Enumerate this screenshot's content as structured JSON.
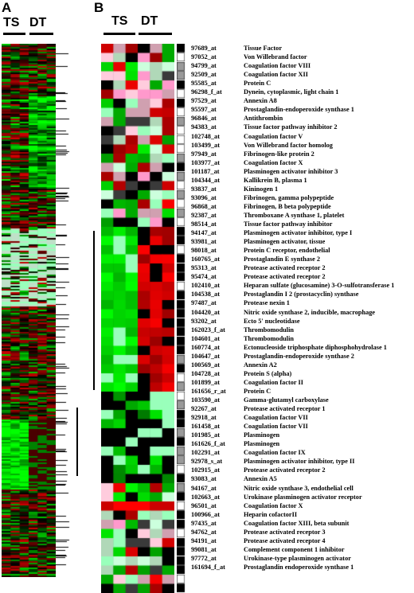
{
  "panelA": {
    "letter": "A",
    "ts": "TS",
    "dt": "DT"
  },
  "panelB": {
    "letter": "B",
    "ts": "TS",
    "dt": "DT"
  },
  "colors": {
    "red": "#ff0000",
    "green": "#00ff00",
    "pink": "#ff99cc",
    "palegreen": "#99ffbb",
    "black": "#000000",
    "gray": "#aaaaaa"
  },
  "genes": [
    {
      "probe": "97689_at",
      "name": "Tissue Factor"
    },
    {
      "probe": "97052_at",
      "name": "Von Willebrand factor"
    },
    {
      "probe": "94799_at",
      "name": "Coagulation factor VIII"
    },
    {
      "probe": "92509_at",
      "name": "Coagulation factor XII"
    },
    {
      "probe": "95585_at",
      "name": "Protein C"
    },
    {
      "probe": "96298_f_at",
      "name": "Dynein, cytoplasmic, light chain 1"
    },
    {
      "probe": "97529_at",
      "name": "Annexin A8"
    },
    {
      "probe": "95597_at",
      "name": "Prostaglandin-endoperoxide synthase 1"
    },
    {
      "probe": "96846_at",
      "name": "Antithrombin"
    },
    {
      "probe": "94383_at",
      "name": "Tissue factor pathway inhibitor 2"
    },
    {
      "probe": "102748_at",
      "name": "Coagulation factor V"
    },
    {
      "probe": "103499_at",
      "name": "Von Willebrand factor homolog"
    },
    {
      "probe": "97949_at",
      "name": "Fibrinogen-like protein 2"
    },
    {
      "probe": "103977_at",
      "name": "Coagulation factor X"
    },
    {
      "probe": "101187_at",
      "name": "Plasminogen activator inhibitor 3"
    },
    {
      "probe": "104344_at",
      "name": "Kallikrein B, plasma 1"
    },
    {
      "probe": "93837_at",
      "name": "Kininogen 1"
    },
    {
      "probe": "93096_at",
      "name": "Fibrinogen, gamma polypeptide"
    },
    {
      "probe": "96868_at",
      "name": "Fibrinogen, B beta polypeptide"
    },
    {
      "probe": "92387_at",
      "name": "Thromboxane A synthase 1, platelet"
    },
    {
      "probe": "98514_at",
      "name": "Tissue factor pathway inhibitor"
    },
    {
      "probe": "94147_at",
      "name": "Plasminogen activator inhibitor, type I"
    },
    {
      "probe": "93981_at",
      "name": "Plasminogen activator, tissue"
    },
    {
      "probe": "98018_at",
      "name": "Protein C receptor, endothelial"
    },
    {
      "probe": "160765_at",
      "name": "Prostaglandin E synthase 2"
    },
    {
      "probe": "95313_at",
      "name": "Protease activated receptor 2"
    },
    {
      "probe": "95474_at",
      "name": "Protease activated receptor 2"
    },
    {
      "probe": "102410_at",
      "name": "Heparan sulfate (glucosamine) 3-O-sulfotransferase 1"
    },
    {
      "probe": "104538_at",
      "name": "Prostaglandin I 2 (prostacyclin) synthase"
    },
    {
      "probe": "97487_at",
      "name": "Protease nexin 1"
    },
    {
      "probe": "104420_at",
      "name": "Nitric oxide synthase 2, inducible, macrophage"
    },
    {
      "probe": "93202_at",
      "name": "Ecto 5' nucleotidase"
    },
    {
      "probe": "162023_f_at",
      "name": "Thrombomodulin"
    },
    {
      "probe": "104601_at",
      "name": "Thrombomodulin"
    },
    {
      "probe": "160774_at",
      "name": "Ectonucleoside triphosphate diphosphohydrolase 1"
    },
    {
      "probe": "104647_at",
      "name": "Prostaglandin-endoperoxide synthase 2"
    },
    {
      "probe": "100569_at",
      "name": "Annexin A2"
    },
    {
      "probe": "104728_at",
      "name": "Protein S (alpha)"
    },
    {
      "probe": "101899_at",
      "name": "Coagulation factor II"
    },
    {
      "probe": "161656_r_at",
      "name": "Protein C"
    },
    {
      "probe": "103590_at",
      "name": "Gamma-glutamyl carboxylase"
    },
    {
      "probe": "92267_at",
      "name": "Protease activated receptor 1"
    },
    {
      "probe": "92918_at",
      "name": "Coagulation factor VII"
    },
    {
      "probe": "161458_at",
      "name": "Coagulation factor VII"
    },
    {
      "probe": "101985_at",
      "name": "Plasminogen"
    },
    {
      "probe": "161626_f_at",
      "name": "Plasminogen"
    },
    {
      "probe": "102291_at",
      "name": "Coagulation factor IX"
    },
    {
      "probe": "92978_s_at",
      "name": "Plasminogen activator inhibitor, type II"
    },
    {
      "probe": "102915_at",
      "name": "Protease activated receptor 2"
    },
    {
      "probe": "93083_at",
      "name": "Annexin A5"
    },
    {
      "probe": "94167_at",
      "name": "Nitric oxide synthase 3, endothelial cell"
    },
    {
      "probe": "102663_at",
      "name": "Urokinase plasminogen activator receptor"
    },
    {
      "probe": "96501_at",
      "name": "Coagulation factor X"
    },
    {
      "probe": "100966_at",
      "name": "Heparin cofactorII"
    },
    {
      "probe": "97435_at",
      "name": "Coagulation factor XIII, beta subunit"
    },
    {
      "probe": "94762_at",
      "name": "Protease activated receptor 3"
    },
    {
      "probe": "94191_at",
      "name": "Protease activated receptor 4"
    },
    {
      "probe": "99081_at",
      "name": "Complement component 1 inhibitor"
    },
    {
      "probe": "97772_at",
      "name": "Urokinase-type plasminogen activator"
    },
    {
      "probe": "161694_f_at",
      "name": "Prostaglandin endoperoxide synthase 1"
    }
  ]
}
